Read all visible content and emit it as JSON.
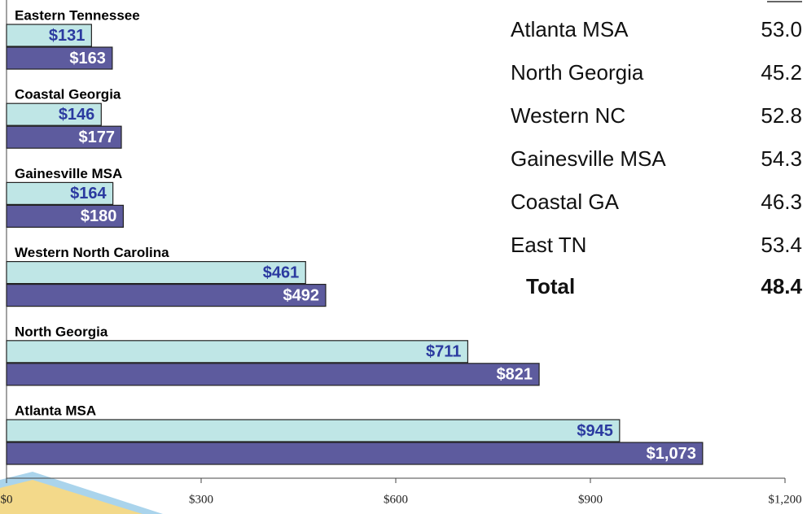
{
  "chart_data": {
    "type": "bar",
    "orientation": "horizontal",
    "categories": [
      "Eastern Tennessee",
      "Coastal Georgia",
      "Gainesville MSA",
      "Western North Carolina",
      "North Georgia",
      "Atlanta MSA"
    ],
    "series": [
      {
        "color": "#bfe6e6",
        "label_color": "#2b3aa0",
        "values": [
          131,
          146,
          164,
          461,
          711,
          945
        ],
        "value_labels": [
          "$131",
          "$146",
          "$164",
          "$461",
          "$711",
          "$945"
        ]
      },
      {
        "color": "#5d5b9e",
        "label_color": "#ffffff",
        "values": [
          163,
          177,
          180,
          492,
          821,
          1073
        ],
        "value_labels": [
          "$163",
          "$177",
          "$180",
          "$492",
          "$821",
          "$1,073"
        ]
      }
    ],
    "xlim": [
      0,
      1200
    ],
    "xticks": [
      {
        "value": 0,
        "label": "$0"
      },
      {
        "value": 300,
        "label": "$300"
      },
      {
        "value": 600,
        "label": "$600"
      },
      {
        "value": 900,
        "label": "$900"
      },
      {
        "value": 1200,
        "label": "$1,200"
      }
    ]
  },
  "table": {
    "rows": [
      [
        "Atlanta MSA",
        "53.0"
      ],
      [
        "North Georgia",
        "45.2"
      ],
      [
        "Western NC",
        "52.8"
      ],
      [
        "Gainesville MSA",
        "54.3"
      ],
      [
        "Coastal GA",
        "46.3"
      ],
      [
        "East TN",
        "53.4"
      ]
    ],
    "total": [
      "Total",
      "48.4"
    ]
  }
}
